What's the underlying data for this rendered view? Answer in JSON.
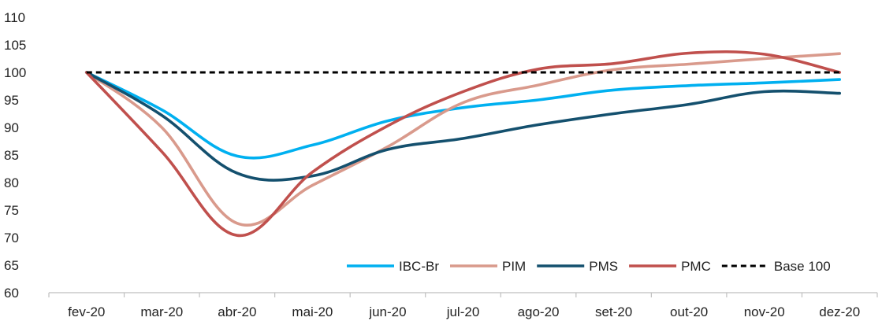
{
  "chart_data": {
    "type": "line",
    "title": "",
    "xlabel": "",
    "ylabel": "",
    "categories": [
      "fev-20",
      "mar-20",
      "abr-20",
      "mai-20",
      "jun-20",
      "jul-20",
      "ago-20",
      "set-20",
      "out-20",
      "nov-20",
      "dez-20"
    ],
    "ylim": [
      60,
      110
    ],
    "yticks": [
      60,
      65,
      70,
      75,
      80,
      85,
      90,
      95,
      100,
      105,
      110
    ],
    "grid": false,
    "legend_position": "bottom-right",
    "series": [
      {
        "name": "IBC-Br",
        "color": "#00B0F0",
        "dash": "solid",
        "values": [
          100,
          93.2,
          84.8,
          86.8,
          91.2,
          93.6,
          95.0,
          96.8,
          97.6,
          98.1,
          98.7
        ]
      },
      {
        "name": "PIM",
        "color": "#D99A8C",
        "dash": "solid",
        "values": [
          100,
          90.0,
          72.6,
          79.5,
          86.5,
          94.5,
          97.7,
          100.5,
          101.5,
          102.5,
          103.4
        ]
      },
      {
        "name": "PMS",
        "color": "#14506E",
        "dash": "solid",
        "values": [
          100,
          92.2,
          81.7,
          81.2,
          86.0,
          88.0,
          90.5,
          92.5,
          94.2,
          96.5,
          96.2
        ]
      },
      {
        "name": "PMC",
        "color": "#C0504D",
        "dash": "solid",
        "values": [
          100,
          85.6,
          70.4,
          81.9,
          90.3,
          96.5,
          100.6,
          101.6,
          103.5,
          103.3,
          100.0
        ]
      },
      {
        "name": "Base 100",
        "color": "#000000",
        "dash": "dashed",
        "values": [
          100,
          100,
          100,
          100,
          100,
          100,
          100,
          100,
          100,
          100,
          100
        ]
      }
    ]
  }
}
